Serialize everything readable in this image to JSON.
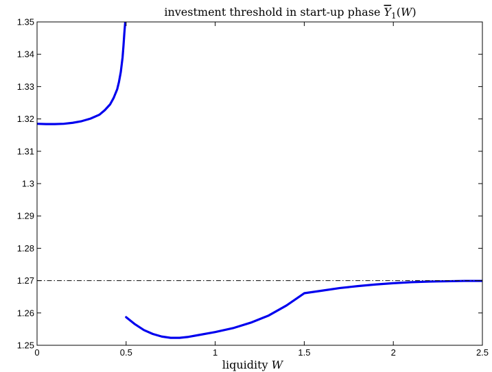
{
  "chart_data": {
    "type": "line",
    "title": "investment threshold in start-up phase Y̅₁(W)",
    "title_text": "investment threshold in start-up phase ",
    "title_symbol": "Y",
    "title_subscript": "1",
    "title_suffix": "(W)",
    "xlabel": "liquidity W",
    "xlabel_text": "liquidity ",
    "xlabel_var": "W",
    "ylabel": "",
    "xlim": [
      0,
      2.5
    ],
    "ylim": [
      1.25,
      1.35
    ],
    "xticks": [
      "0",
      "0.5",
      "1",
      "1.5",
      "2",
      "2.5"
    ],
    "yticks": [
      "1.25",
      "1.26",
      "1.27",
      "1.28",
      "1.29",
      "1.3",
      "1.31",
      "1.32",
      "1.33",
      "1.34",
      "1.35"
    ],
    "grid": false,
    "colors": {
      "curve": "#0000ee",
      "reference": "#000000",
      "axes": "#000000"
    },
    "series": [
      {
        "style": "solid",
        "x": [
          0,
          0.05,
          0.1,
          0.15,
          0.2,
          0.25,
          0.3,
          0.35,
          0.38,
          0.41,
          0.43,
          0.45,
          0.46,
          0.47,
          0.48,
          0.485,
          0.49,
          0.495
        ],
        "y": [
          1.3185,
          1.3184,
          1.3184,
          1.3185,
          1.3188,
          1.3193,
          1.3201,
          1.3213,
          1.3227,
          1.3245,
          1.3265,
          1.3292,
          1.3315,
          1.3345,
          1.339,
          1.3425,
          1.3465,
          1.35
        ]
      },
      {
        "style": "solid",
        "x": [
          0.5,
          0.55,
          0.6,
          0.65,
          0.7,
          0.75,
          0.8,
          0.85,
          0.9,
          1.0,
          1.1,
          1.2,
          1.3,
          1.4,
          1.5,
          1.6,
          1.7,
          1.8,
          1.9,
          2.0,
          2.1,
          2.2,
          2.3,
          2.4,
          2.5
        ],
        "y": [
          1.2587,
          1.2565,
          1.2547,
          1.2535,
          1.2527,
          1.2523,
          1.2523,
          1.2526,
          1.2531,
          1.2541,
          1.2553,
          1.257,
          1.2592,
          1.2623,
          1.2661,
          1.2669,
          1.2677,
          1.2683,
          1.2688,
          1.2692,
          1.2695,
          1.2697,
          1.2698,
          1.2699,
          1.2699
        ]
      },
      {
        "style": "dash-dot",
        "x": [
          0,
          2.5
        ],
        "y": [
          1.27,
          1.27
        ]
      }
    ]
  }
}
